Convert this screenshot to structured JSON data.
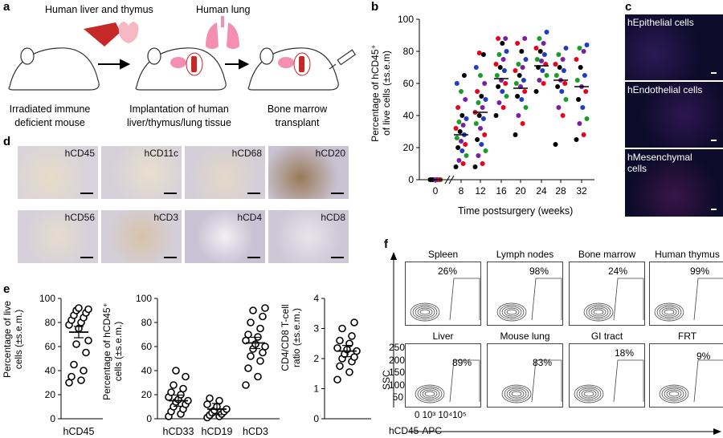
{
  "panels": {
    "a": "a",
    "b": "b",
    "c": "c",
    "d": "d",
    "e": "e",
    "f": "f"
  },
  "panel_a": {
    "top_left_label": "Human liver and thymus",
    "top_mid_label": "Human lung",
    "step1": [
      "Irradiated immune",
      "deficient mouse"
    ],
    "step2": [
      "Implantation of human",
      "liver/thymus/lung tissue"
    ],
    "step3": [
      "Bone marrow",
      "transplant"
    ]
  },
  "panel_b": {
    "ylabel1": "Percentage of hCD45⁺",
    "ylabel2": "of live cells (±s.e.m)",
    "xlabel": "Time postsurgery (weeks)",
    "yticks": [
      "0",
      "20",
      "40",
      "60",
      "80",
      "100"
    ],
    "xticks": [
      "0",
      "8",
      "12",
      "16",
      "20",
      "24",
      "28",
      "32"
    ]
  },
  "panel_c": {
    "labels": [
      "hEpithelial cells",
      "hEndothelial cells",
      "hMesenchymal cells"
    ]
  },
  "panel_d": {
    "labels": [
      "hCD45",
      "hCD11c",
      "hCD68",
      "hCD20",
      "hCD56",
      "hCD3",
      "hCD4",
      "hCD8"
    ]
  },
  "panel_e": {
    "plot1_ylabel": [
      "Percentage of live",
      "cells (±s.e.m.)"
    ],
    "plot1_x": "hCD45",
    "plot2_ylabel": [
      "Percentage of hCD45⁺",
      "cells (±s.e.m.)"
    ],
    "plot2_x": [
      "hCD33",
      "hCD19",
      "hCD3"
    ],
    "plot3_ylabel": [
      "CD4/CD8 T-cell",
      "ratio (±s.e.m.)"
    ],
    "yticks100": [
      "0",
      "20",
      "40",
      "60",
      "80",
      "100"
    ],
    "yticks4": [
      "0",
      "1",
      "2",
      "3",
      "4"
    ]
  },
  "panel_f": {
    "titles": [
      "Spleen",
      "Lymph nodes",
      "Bone marrow",
      "Human thymus",
      "Liver",
      "Mouse lung",
      "GI tract",
      "FRT"
    ],
    "percents": [
      "26%",
      "98%",
      "24%",
      "99%",
      "89%",
      "83%",
      "18%",
      "9%"
    ],
    "yaxis": "SSC",
    "xaxis": "hCD45-APC",
    "yticks": [
      "250",
      "200",
      "150",
      "100",
      "50"
    ],
    "xticks": "0 10³ 10⁴10⁵"
  },
  "chart_data": [
    {
      "type": "scatter",
      "xlabel": "Time postsurgery (weeks)",
      "ylabel": "Percentage of hCD45⁺ of live cells (±s.e.m)",
      "ylim": [
        0,
        100
      ],
      "x_categories": [
        "0",
        "8",
        "12",
        "16",
        "20",
        "24",
        "28",
        "32"
      ],
      "means": [
        0,
        28,
        42,
        63,
        57,
        71,
        62,
        58
      ],
      "series_colors": [
        "#000000",
        "#e8001c",
        "#7b1fa2",
        "#1a9c2a",
        "#1f3cc2"
      ],
      "points": {
        "0": [
          0,
          0,
          0,
          0,
          0,
          0,
          0,
          0
        ],
        "8": [
          8,
          10,
          12,
          15,
          18,
          20,
          22,
          24,
          26,
          28,
          30,
          32,
          34,
          36,
          38,
          40,
          45,
          50,
          55,
          60,
          65
        ],
        "12": [
          8,
          10,
          15,
          18,
          22,
          25,
          28,
          32,
          35,
          38,
          40,
          42,
          45,
          48,
          50,
          52,
          55,
          60,
          65,
          70,
          78,
          79
        ],
        "16": [
          40,
          45,
          48,
          52,
          55,
          58,
          60,
          62,
          65,
          68,
          70,
          72,
          75,
          78,
          80,
          85,
          88,
          88
        ],
        "20": [
          28,
          35,
          40,
          45,
          50,
          52,
          55,
          58,
          60,
          62,
          65,
          68,
          70,
          72,
          75,
          80,
          85,
          88
        ],
        "24": [
          55,
          60,
          62,
          65,
          68,
          70,
          72,
          74,
          75,
          78,
          80,
          82,
          85,
          88,
          92
        ],
        "28": [
          22,
          40,
          45,
          50,
          55,
          58,
          60,
          62,
          65,
          68,
          70,
          72,
          75,
          78,
          82
        ],
        "32": [
          25,
          28,
          35,
          38,
          45,
          50,
          55,
          58,
          62,
          65,
          70,
          75,
          80,
          82,
          84
        ]
      }
    },
    {
      "type": "scatter",
      "xlabel": "hCD45",
      "ylabel": "Percentage of live cells (±s.e.m.)",
      "ylim": [
        0,
        100
      ],
      "mean": 72,
      "values": [
        30,
        32,
        35,
        40,
        45,
        55,
        62,
        65,
        75,
        78,
        80,
        82,
        84,
        86,
        88,
        90,
        91,
        92
      ]
    },
    {
      "type": "scatter",
      "ylabel": "Percentage of hCD45⁺ cells (±s.e.m.)",
      "ylim": [
        0,
        100
      ],
      "categories": [
        "hCD33",
        "hCD19",
        "hCD3"
      ],
      "means": [
        15,
        8,
        63
      ],
      "values": [
        [
          2,
          4,
          6,
          8,
          10,
          12,
          14,
          15,
          16,
          18,
          20,
          22,
          25,
          28,
          35,
          40
        ],
        [
          1,
          2,
          3,
          4,
          5,
          6,
          7,
          8,
          10,
          12,
          15,
          17
        ],
        [
          28,
          35,
          42,
          48,
          52,
          55,
          58,
          60,
          62,
          65,
          68,
          70,
          75,
          80,
          85,
          90,
          92
        ]
      ]
    },
    {
      "type": "scatter",
      "ylabel": "CD4/CD8 T-cell ratio (±s.e.m.)",
      "ylim": [
        0,
        4
      ],
      "mean": 2.25,
      "values": [
        1.3,
        1.55,
        1.75,
        1.9,
        2.0,
        2.05,
        2.15,
        2.25,
        2.3,
        2.35,
        2.5,
        2.6,
        2.75,
        3.0,
        3.2
      ]
    }
  ]
}
